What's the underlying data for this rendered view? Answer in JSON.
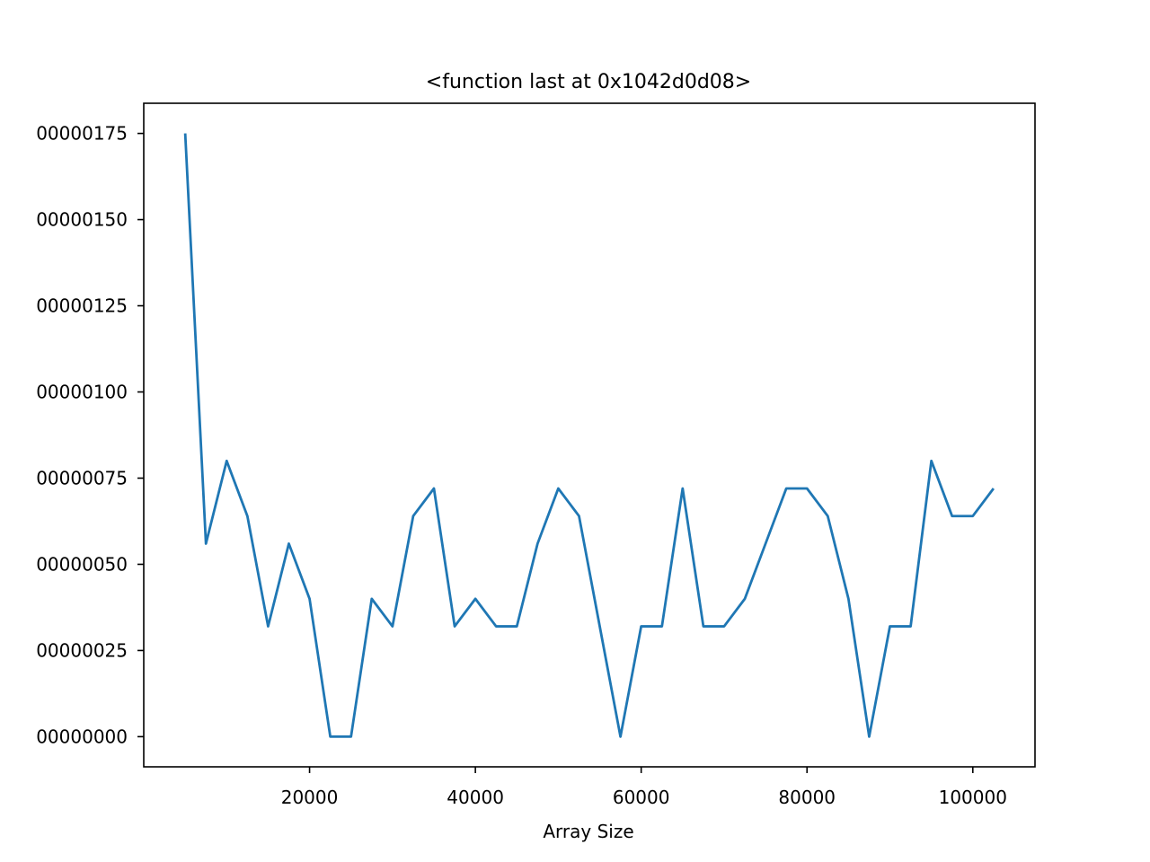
{
  "chart_data": {
    "type": "line",
    "title": "<function last at 0x1042d0d08>",
    "xlabel": "Array Size",
    "ylabel": "",
    "xlim": [
      0,
      107500
    ],
    "ylim": [
      -8.75e-09,
      1.8375e-07
    ],
    "x_ticks": [
      20000,
      40000,
      60000,
      80000,
      100000
    ],
    "x_tick_labels": [
      "20000",
      "40000",
      "60000",
      "80000",
      "100000"
    ],
    "y_ticks": [
      0.0,
      2.5e-08,
      5e-08,
      7.5e-08,
      1e-07,
      1.25e-07,
      1.5e-07,
      1.75e-07
    ],
    "y_tick_labels": [
      "00000000",
      "00000025",
      "00000050",
      "00000075",
      "00000100",
      "00000125",
      "00000150",
      "00000175"
    ],
    "grid": false,
    "color": "#1f77b4",
    "series": [
      {
        "x": [
          5000,
          7500,
          10000,
          12500,
          15000,
          17500,
          20000,
          22500,
          25000,
          27500,
          30000,
          32500,
          35000,
          37500,
          40000,
          42500,
          45000,
          47500,
          50000,
          52500,
          55000,
          57500,
          60000,
          62500,
          65000,
          67500,
          70000,
          72500,
          75000,
          77500,
          80000,
          82500,
          85000,
          87500,
          90000,
          92500,
          95000,
          97500,
          100000,
          102500
        ],
        "values": [
          1.75e-07,
          5.6e-08,
          8e-08,
          6.4e-08,
          3.2e-08,
          5.6e-08,
          4e-08,
          0.0,
          0.0,
          4e-08,
          3.2e-08,
          6.4e-08,
          7.2e-08,
          3.2e-08,
          4e-08,
          3.2e-08,
          3.2e-08,
          5.6e-08,
          7.2e-08,
          6.4e-08,
          3.2e-08,
          0.0,
          3.2e-08,
          3.2e-08,
          7.2e-08,
          3.2e-08,
          3.2e-08,
          4e-08,
          5.6e-08,
          7.2e-08,
          7.2e-08,
          6.4e-08,
          4e-08,
          0.0,
          3.2e-08,
          3.2e-08,
          8e-08,
          6.4e-08,
          6.4e-08,
          7.2e-08
        ]
      }
    ]
  }
}
